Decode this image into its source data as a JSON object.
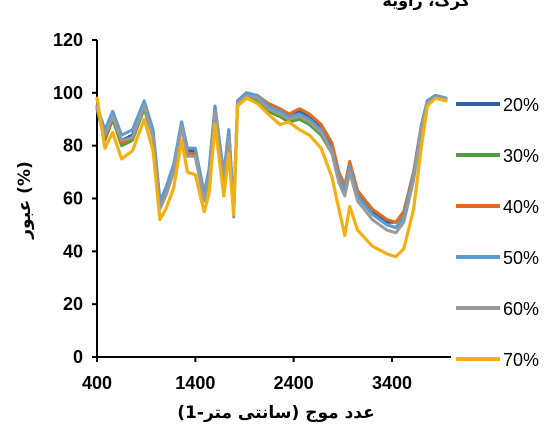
{
  "header_text": "کرک، زاویه",
  "chart_data": {
    "type": "line",
    "xlabel": "عدد موج (سانتی متر-1)",
    "ylabel": "عبور (%)",
    "xlim": [
      400,
      4000
    ],
    "ylim": [
      0,
      120
    ],
    "xticks": [
      400,
      1400,
      2400,
      3400
    ],
    "yticks": [
      0,
      20,
      40,
      60,
      80,
      100,
      120
    ],
    "x": [
      400,
      480,
      560,
      650,
      760,
      880,
      970,
      1040,
      1100,
      1180,
      1260,
      1320,
      1400,
      1490,
      1540,
      1600,
      1690,
      1740,
      1790,
      1830,
      1920,
      2030,
      2140,
      2260,
      2350,
      2460,
      2560,
      2680,
      2790,
      2860,
      2920,
      2970,
      3050,
      3200,
      3350,
      3440,
      3520,
      3620,
      3700,
      3760,
      3840,
      3950
    ],
    "series": [
      {
        "name": "20%",
        "color": "#2e5fa8",
        "values": [
          95,
          84,
          92,
          82,
          84,
          96,
          85,
          59,
          63,
          72,
          89,
          78,
          78,
          62,
          71,
          94,
          69,
          86,
          56,
          97,
          100,
          99,
          96,
          94,
          92,
          93,
          91,
          87,
          80,
          69,
          64,
          73,
          62,
          55,
          51,
          51,
          55,
          70,
          88,
          97,
          99,
          98
        ]
      },
      {
        "name": "30%",
        "color": "#4ea03a",
        "values": [
          94,
          82,
          90,
          80,
          82,
          94,
          83,
          58,
          62,
          71,
          87,
          77,
          76,
          60,
          69,
          92,
          67,
          84,
          54,
          95,
          99,
          97,
          93,
          91,
          89,
          90,
          88,
          84,
          77,
          67,
          62,
          71,
          61,
          54,
          50,
          49,
          53,
          68,
          86,
          96,
          98,
          98
        ]
      },
      {
        "name": "40%",
        "color": "#e06c1c",
        "values": [
          95,
          83,
          91,
          81,
          83,
          95,
          84,
          57,
          61,
          71,
          88,
          77,
          77,
          61,
          70,
          95,
          68,
          85,
          55,
          97,
          100,
          99,
          96,
          94,
          92,
          94,
          92,
          88,
          81,
          70,
          65,
          74,
          63,
          56,
          52,
          51,
          55,
          70,
          88,
          97,
          99,
          98
        ]
      },
      {
        "name": "50%",
        "color": "#5b9bd5",
        "values": [
          95,
          86,
          93,
          84,
          86,
          97,
          86,
          59,
          64,
          73,
          89,
          79,
          79,
          62,
          71,
          95,
          69,
          86,
          56,
          97,
          100,
          99,
          95,
          93,
          91,
          92,
          90,
          86,
          78,
          68,
          63,
          72,
          61,
          54,
          50,
          49,
          53,
          69,
          88,
          97,
          99,
          98
        ]
      },
      {
        "name": "60%",
        "color": "#9a9a9a",
        "values": [
          94,
          84,
          91,
          82,
          83,
          95,
          83,
          56,
          61,
          70,
          87,
          76,
          76,
          59,
          68,
          93,
          66,
          83,
          53,
          96,
          99,
          98,
          94,
          92,
          90,
          91,
          89,
          85,
          77,
          66,
          61,
          70,
          59,
          52,
          48,
          47,
          51,
          67,
          87,
          96,
          98,
          98
        ]
      },
      {
        "name": "70%",
        "color": "#f2b011",
        "values": [
          98,
          79,
          85,
          75,
          78,
          90,
          78,
          52,
          56,
          64,
          82,
          70,
          69,
          55,
          62,
          88,
          61,
          77,
          54,
          95,
          98,
          96,
          92,
          88,
          89,
          86,
          84,
          79,
          68,
          56,
          46,
          57,
          48,
          42,
          39,
          38,
          41,
          56,
          80,
          95,
          98,
          97
        ]
      }
    ],
    "grid": false,
    "legend_position": "right"
  }
}
